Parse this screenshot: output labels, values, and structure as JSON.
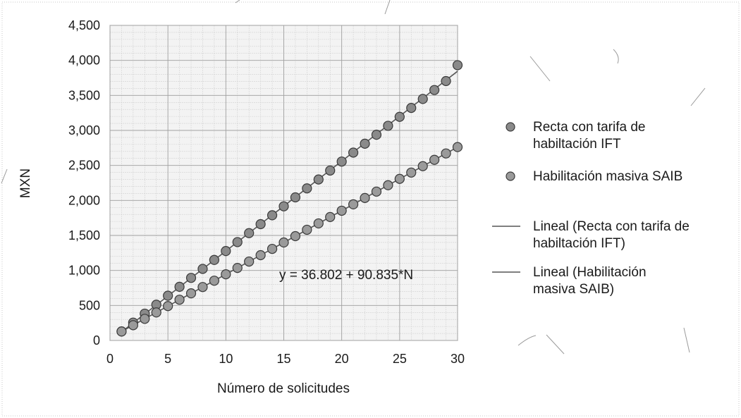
{
  "chart_data": {
    "type": "scatter",
    "xlabel": "Número de solicitudes",
    "ylabel": "MXN",
    "xlim": [
      0,
      30
    ],
    "ylim": [
      0,
      4500
    ],
    "x_ticks": [
      "0",
      "5",
      "10",
      "15",
      "20",
      "25",
      "30"
    ],
    "y_ticks": [
      "0",
      "500",
      "1,000",
      "1,500",
      "2,000",
      "2,500",
      "3,000",
      "3,500",
      "4,000",
      "4,500"
    ],
    "grid": true,
    "legend_position": "right",
    "annotation": "y = 36.802 + 90.835*N",
    "x": [
      1,
      2,
      3,
      4,
      5,
      6,
      7,
      8,
      9,
      10,
      11,
      12,
      13,
      14,
      15,
      16,
      17,
      18,
      19,
      20,
      21,
      22,
      23,
      24,
      25,
      26,
      27,
      28,
      29,
      30
    ],
    "series": [
      {
        "name": "Recta con tarifa de habiltación IFT",
        "color": "#8a8a8a",
        "values": [
          128,
          255,
          383,
          511,
          639,
          766,
          894,
          1022,
          1150,
          1277,
          1405,
          1533,
          1661,
          1788,
          1916,
          2044,
          2172,
          2299,
          2427,
          2555,
          2683,
          2810,
          2938,
          3066,
          3194,
          3321,
          3449,
          3577,
          3705,
          3932
        ]
      },
      {
        "name": "Habilitación masiva SAIB",
        "color": "#9a9a9a",
        "values": [
          128,
          218,
          309,
          400,
          491,
          582,
          673,
          763,
          854,
          945,
          1036,
          1127,
          1218,
          1308,
          1399,
          1490,
          1581,
          1672,
          1763,
          1853,
          1944,
          2035,
          2126,
          2217,
          2308,
          2398,
          2489,
          2580,
          2671,
          2762
        ]
      }
    ],
    "trendlines": [
      {
        "name": "Lineal (Recta con tarifa de habiltación IFT)",
        "color": "#555555"
      },
      {
        "name": "Lineal (Habilitación masiva SAIB)",
        "color": "#555555"
      }
    ],
    "legend": {
      "entries": [
        {
          "lines": [
            "Recta con tarifa de",
            "habiltación IFT"
          ],
          "marker": "circle"
        },
        {
          "lines": [
            "Habilitación masiva SAIB"
          ],
          "marker": "circle"
        },
        {
          "lines": [
            "Lineal (Recta con tarifa de",
            "habiltación IFT)"
          ],
          "marker": "line"
        },
        {
          "lines": [
            "Lineal (Habilitación",
            "masiva SAIB)"
          ],
          "marker": "line"
        }
      ]
    }
  }
}
